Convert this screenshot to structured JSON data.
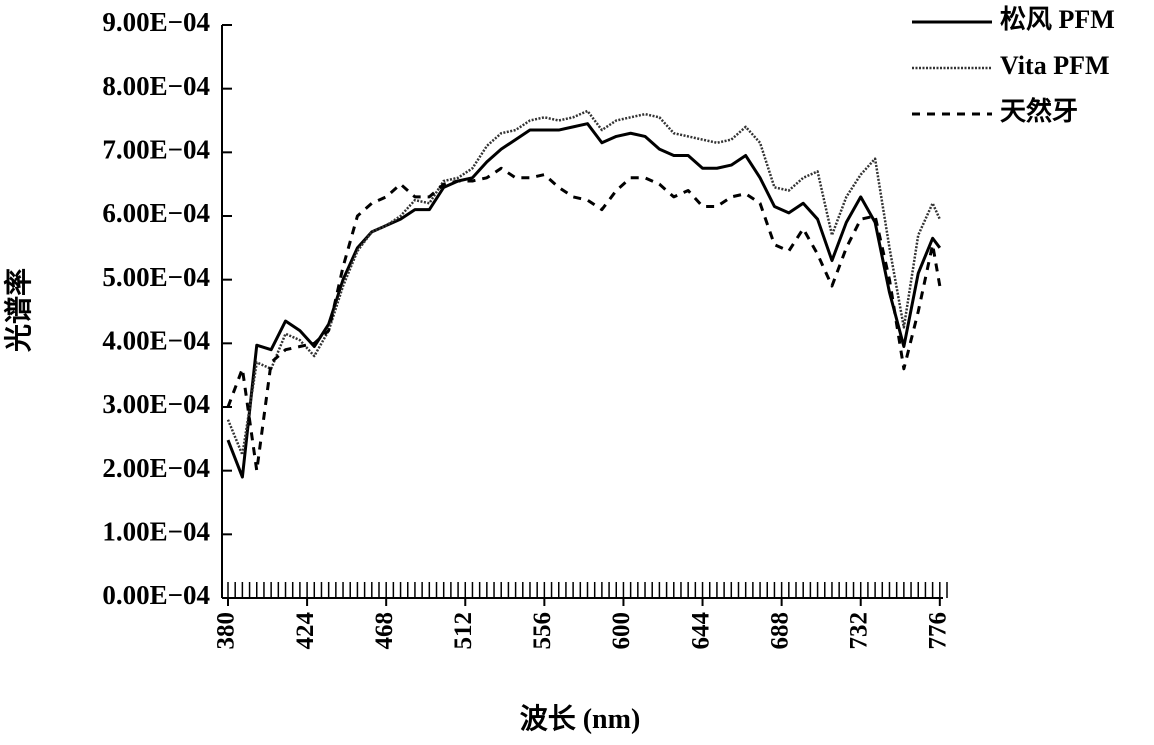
{
  "chart_data": {
    "type": "line",
    "xlabel": "波长 (nm)",
    "ylabel": "光谱率",
    "x": [
      380,
      388,
      396,
      404,
      412,
      420,
      428,
      436,
      444,
      452,
      460,
      468,
      476,
      484,
      492,
      500,
      508,
      516,
      524,
      532,
      540,
      548,
      556,
      564,
      572,
      580,
      588,
      596,
      604,
      612,
      620,
      628,
      636,
      644,
      652,
      660,
      668,
      676,
      684,
      692,
      700,
      708,
      716,
      724,
      732,
      740,
      748,
      756,
      764,
      772,
      776
    ],
    "series": [
      {
        "name": "松风 PFM",
        "color": "#000000",
        "style": "solid",
        "values": [
          0.000248,
          0.00019,
          0.000397,
          0.00039,
          0.000435,
          0.00042,
          0.000395,
          0.00043,
          0.0005,
          0.00055,
          0.000575,
          0.000585,
          0.000595,
          0.00061,
          0.00061,
          0.000645,
          0.000655,
          0.00066,
          0.000685,
          0.000705,
          0.00072,
          0.000735,
          0.000735,
          0.000735,
          0.00074,
          0.000745,
          0.000715,
          0.000725,
          0.00073,
          0.000725,
          0.000705,
          0.000695,
          0.000695,
          0.000675,
          0.000675,
          0.00068,
          0.000695,
          0.00066,
          0.000615,
          0.000605,
          0.00062,
          0.000595,
          0.00053,
          0.00059,
          0.00063,
          0.00059,
          0.00048,
          0.000395,
          0.00051,
          0.000565,
          0.00055
        ]
      },
      {
        "name": "Vita PFM",
        "color": "#333333",
        "style": "dotted",
        "values": [
          0.00028,
          0.000225,
          0.00037,
          0.00036,
          0.000415,
          0.000405,
          0.00038,
          0.00042,
          0.00049,
          0.000545,
          0.000575,
          0.000585,
          0.0006,
          0.000625,
          0.00062,
          0.000655,
          0.00066,
          0.000675,
          0.00071,
          0.00073,
          0.000735,
          0.00075,
          0.000755,
          0.00075,
          0.000755,
          0.000765,
          0.000735,
          0.00075,
          0.000755,
          0.00076,
          0.000755,
          0.00073,
          0.000725,
          0.00072,
          0.000715,
          0.00072,
          0.00074,
          0.000715,
          0.000645,
          0.00064,
          0.00066,
          0.00067,
          0.00057,
          0.00063,
          0.000665,
          0.00069,
          0.00055,
          0.000425,
          0.00057,
          0.00062,
          0.000595
        ]
      },
      {
        "name": "天然牙",
        "color": "#000000",
        "style": "dashed",
        "values": [
          0.0003,
          0.00036,
          0.0002,
          0.00037,
          0.00039,
          0.000395,
          0.0004,
          0.00042,
          0.00052,
          0.0006,
          0.00062,
          0.00063,
          0.00065,
          0.00063,
          0.00063,
          0.00065,
          0.000655,
          0.000655,
          0.00066,
          0.000675,
          0.00066,
          0.00066,
          0.000665,
          0.000645,
          0.00063,
          0.000625,
          0.00061,
          0.00064,
          0.00066,
          0.00066,
          0.00065,
          0.00063,
          0.00064,
          0.000615,
          0.000615,
          0.00063,
          0.000635,
          0.00062,
          0.000555,
          0.000545,
          0.00058,
          0.00054,
          0.00049,
          0.00055,
          0.000595,
          0.0006,
          0.0005,
          0.00036,
          0.00045,
          0.000555,
          0.00049
        ]
      }
    ],
    "xlim": [
      380,
      780
    ],
    "xticks": [
      380,
      424,
      468,
      512,
      556,
      600,
      644,
      688,
      732,
      776
    ],
    "xminorticks": [
      380,
      384,
      388,
      392,
      396,
      400,
      404,
      408,
      412,
      416,
      420,
      424,
      428,
      432,
      436,
      440,
      444,
      448,
      452,
      456,
      460,
      464,
      468,
      472,
      476,
      480,
      484,
      488,
      492,
      496,
      500,
      504,
      508,
      512,
      516,
      520,
      524,
      528,
      532,
      536,
      540,
      544,
      548,
      552,
      556,
      560,
      564,
      568,
      572,
      576,
      580,
      584,
      588,
      592,
      596,
      600,
      604,
      608,
      612,
      616,
      620,
      624,
      628,
      632,
      636,
      640,
      644,
      648,
      652,
      656,
      660,
      664,
      668,
      672,
      676,
      680,
      684,
      688,
      692,
      696,
      700,
      704,
      708,
      712,
      716,
      720,
      724,
      728,
      732,
      736,
      740,
      744,
      748,
      752,
      756,
      760,
      764,
      768,
      772,
      776,
      780
    ],
    "ylim": [
      0,
      0.0009
    ],
    "yticks": [
      {
        "value": 0,
        "label": "0.00E−04"
      },
      {
        "value": 0.0001,
        "label": "1.00E−04"
      },
      {
        "value": 0.0002,
        "label": "2.00E−04"
      },
      {
        "value": 0.0003,
        "label": "3.00E−04"
      },
      {
        "value": 0.0004,
        "label": "4.00E−04"
      },
      {
        "value": 0.0005,
        "label": "5.00E−04"
      },
      {
        "value": 0.0006,
        "label": "6.00E−04"
      },
      {
        "value": 0.0007,
        "label": "7.00E−04"
      },
      {
        "value": 0.0008,
        "label": "8.00E−04"
      },
      {
        "value": 0.0009,
        "label": "9.00E−04"
      }
    ],
    "legend": "upper-right",
    "grid": false
  }
}
